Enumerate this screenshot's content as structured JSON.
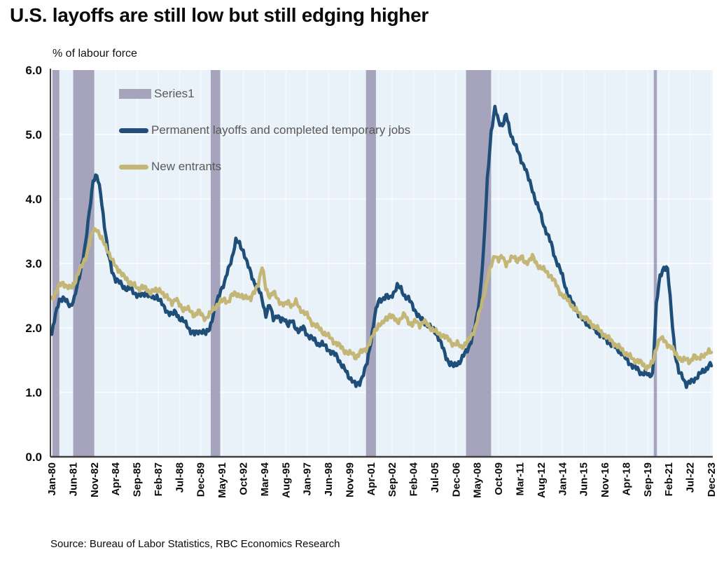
{
  "title": "U.S. layoffs are still low but still edging higher",
  "y_axis_title": "% of labour force",
  "source": "Source: Bureau of Labor Statistics, RBC Economics Research",
  "legend": {
    "recession": "Series1",
    "layoffs": "Permanent layoffs and completed temporary jobs",
    "new_entrants": "New entrants"
  },
  "colors": {
    "recession_band": "#a5a4bc",
    "layoffs_line": "#1f4e79",
    "new_entrants_line": "#c4b676",
    "plot_background": "#e9f2f9",
    "gridline": "#ffffff",
    "axis_line": "#3f3f3f",
    "tick_text": "#0b0b0b",
    "legend_text": "#595959"
  },
  "chart_data": {
    "type": "line",
    "title": "U.S. layoffs are still low but still edging higher",
    "ylabel": "% of labour force",
    "ylim": [
      0,
      6
    ],
    "grid": true,
    "legend_position": "top-left-inside",
    "y_ticks": [
      "0.0",
      "1.0",
      "2.0",
      "3.0",
      "4.0",
      "5.0",
      "6.0"
    ],
    "x_ticks": [
      "Jan-80",
      "Jun-81",
      "Nov-82",
      "Apr-84",
      "Sep-85",
      "Feb-87",
      "Jul-88",
      "Dec-89",
      "May-91",
      "Oct-92",
      "Mar-94",
      "Aug-95",
      "Jan-97",
      "Jun-98",
      "Nov-99",
      "Apr-01",
      "Sep-02",
      "Feb-04",
      "Jul-05",
      "Dec-06",
      "May-08",
      "Oct-09",
      "Mar-11",
      "Aug-12",
      "Jan-14",
      "Jun-15",
      "Nov-16",
      "Apr-18",
      "Sep-19",
      "Feb-21",
      "Jul-22",
      "Dec-23"
    ],
    "x_tick_interval_months": 17,
    "x_range": [
      "1980-01",
      "2023-12"
    ],
    "values_resolution": "quarterly, 1980Q1 through 2023Q4 (values estimated from chart)",
    "recession_bands_years": [
      [
        1980.04,
        1980.5
      ],
      [
        1981.42,
        1982.83
      ],
      [
        1990.58,
        1991.21
      ],
      [
        2000.92,
        2001.58
      ],
      [
        2007.58,
        2009.25
      ],
      [
        2020.08,
        2020.29
      ]
    ],
    "series": [
      {
        "name": "Permanent layoffs and completed temporary jobs",
        "color": "#1f4e79",
        "values": [
          1.9,
          2.2,
          2.45,
          2.45,
          2.4,
          2.35,
          2.45,
          2.7,
          3.0,
          3.3,
          3.8,
          4.3,
          4.35,
          4.1,
          3.6,
          3.15,
          2.9,
          2.75,
          2.7,
          2.65,
          2.6,
          2.6,
          2.55,
          2.5,
          2.5,
          2.55,
          2.5,
          2.45,
          2.5,
          2.4,
          2.3,
          2.25,
          2.2,
          2.25,
          2.15,
          2.1,
          2.05,
          1.95,
          1.9,
          1.95,
          1.95,
          1.9,
          2.0,
          2.2,
          2.4,
          2.6,
          2.7,
          2.9,
          3.1,
          3.35,
          3.3,
          3.2,
          3.0,
          2.85,
          2.7,
          2.6,
          2.45,
          2.2,
          2.35,
          2.15,
          2.2,
          2.1,
          2.15,
          2.05,
          2.1,
          2.0,
          1.95,
          2.0,
          1.9,
          1.85,
          1.8,
          1.75,
          1.75,
          1.7,
          1.65,
          1.6,
          1.55,
          1.45,
          1.35,
          1.25,
          1.2,
          1.1,
          1.15,
          1.3,
          1.45,
          1.8,
          2.2,
          2.4,
          2.45,
          2.5,
          2.45,
          2.55,
          2.65,
          2.6,
          2.5,
          2.45,
          2.35,
          2.25,
          2.15,
          2.1,
          2.05,
          2.0,
          1.95,
          1.85,
          1.7,
          1.55,
          1.45,
          1.4,
          1.45,
          1.5,
          1.6,
          1.7,
          1.85,
          2.1,
          2.5,
          3.2,
          4.3,
          5.05,
          5.4,
          5.2,
          5.15,
          5.3,
          5.05,
          4.9,
          4.75,
          4.6,
          4.5,
          4.3,
          4.15,
          3.95,
          3.8,
          3.6,
          3.45,
          3.3,
          3.1,
          2.95,
          2.8,
          2.6,
          2.45,
          2.35,
          2.25,
          2.15,
          2.1,
          2.05,
          2.0,
          1.95,
          1.9,
          1.85,
          1.8,
          1.75,
          1.7,
          1.65,
          1.6,
          1.5,
          1.45,
          1.4,
          1.35,
          1.3,
          1.3,
          1.25,
          1.3,
          2.35,
          2.8,
          2.95,
          2.9,
          2.25,
          1.6,
          1.3,
          1.25,
          1.12,
          1.15,
          1.2,
          1.25,
          1.3,
          1.35,
          1.42
        ]
      },
      {
        "name": "New entrants",
        "color": "#c4b676",
        "values": [
          2.45,
          2.55,
          2.65,
          2.7,
          2.65,
          2.6,
          2.7,
          2.85,
          2.95,
          3.1,
          3.3,
          3.5,
          3.55,
          3.4,
          3.3,
          3.2,
          3.05,
          2.95,
          2.9,
          2.8,
          2.75,
          2.7,
          2.65,
          2.6,
          2.65,
          2.6,
          2.55,
          2.6,
          2.55,
          2.6,
          2.5,
          2.45,
          2.4,
          2.45,
          2.35,
          2.3,
          2.3,
          2.25,
          2.2,
          2.25,
          2.2,
          2.15,
          2.2,
          2.3,
          2.35,
          2.4,
          2.45,
          2.4,
          2.5,
          2.55,
          2.5,
          2.45,
          2.5,
          2.45,
          2.55,
          2.7,
          2.95,
          2.6,
          2.5,
          2.55,
          2.45,
          2.4,
          2.35,
          2.4,
          2.35,
          2.4,
          2.3,
          2.25,
          2.2,
          2.1,
          2.05,
          2.0,
          1.95,
          1.9,
          1.85,
          1.8,
          1.75,
          1.7,
          1.65,
          1.6,
          1.6,
          1.55,
          1.6,
          1.65,
          1.7,
          1.8,
          1.95,
          2.05,
          2.05,
          2.15,
          2.2,
          2.15,
          2.1,
          2.15,
          2.2,
          2.1,
          2.05,
          2.1,
          2.05,
          2.1,
          2.05,
          2.0,
          1.95,
          1.9,
          1.9,
          1.85,
          1.8,
          1.75,
          1.75,
          1.7,
          1.75,
          1.8,
          1.9,
          2.05,
          2.25,
          2.5,
          2.75,
          2.95,
          3.15,
          3.05,
          3.1,
          3.0,
          3.05,
          3.1,
          3.05,
          3.1,
          3.0,
          3.05,
          3.1,
          3.0,
          2.95,
          2.9,
          2.85,
          2.8,
          2.7,
          2.6,
          2.5,
          2.45,
          2.4,
          2.3,
          2.25,
          2.2,
          2.15,
          2.1,
          2.05,
          2.0,
          1.95,
          1.9,
          1.85,
          1.8,
          1.75,
          1.7,
          1.65,
          1.6,
          1.55,
          1.5,
          1.5,
          1.45,
          1.4,
          1.4,
          1.45,
          1.7,
          1.85,
          1.8,
          1.75,
          1.7,
          1.6,
          1.55,
          1.48,
          1.52,
          1.48,
          1.55,
          1.52,
          1.58,
          1.55,
          1.65
        ]
      }
    ]
  }
}
